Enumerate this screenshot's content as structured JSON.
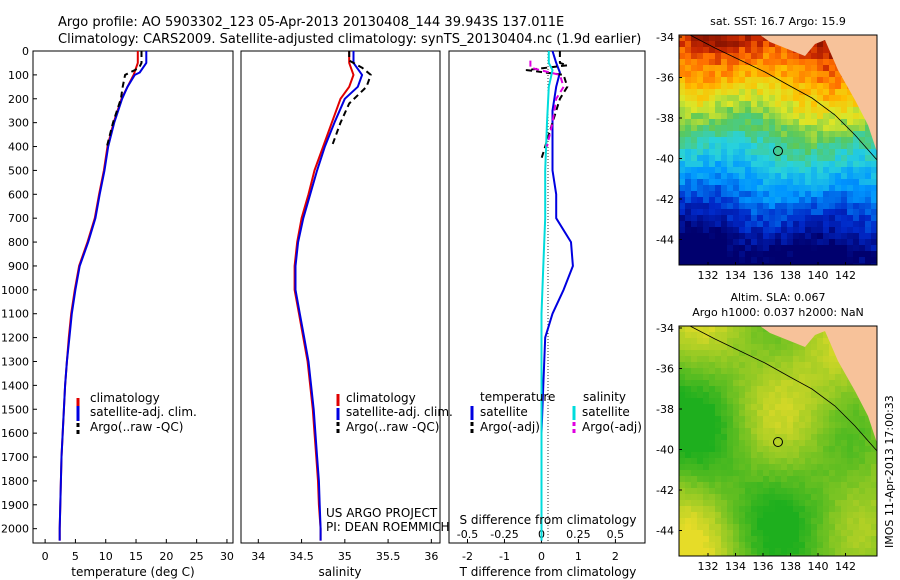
{
  "header": {
    "line1": "Argo profile: AO 5903302_123 05-Apr-2013 20130408_144 39.943S 137.011E",
    "line2": "Climatology: CARS2009. Satellite-adjusted climatology: synTS_20130404.nc (1.9d earlier)"
  },
  "colors": {
    "climatology": "#e00000",
    "satellite": "#0000e0",
    "argo": "#000000",
    "sal_satellite": "#00dcdc",
    "sal_argo": "#e000e0",
    "land": "#f7c29a"
  },
  "chart_data": [
    {
      "id": "temperature",
      "type": "line",
      "xlabel": "temperature (deg C)",
      "xlim": [
        -2,
        31
      ],
      "ylim": [
        0,
        2060
      ],
      "xticks": [
        0,
        5,
        10,
        15,
        20,
        25,
        30
      ],
      "yticks": [
        0,
        100,
        200,
        300,
        400,
        500,
        600,
        700,
        800,
        900,
        1000,
        1100,
        1200,
        1300,
        1400,
        1500,
        1600,
        1700,
        1800,
        1900,
        2000
      ],
      "y_inverted": true,
      "legend": [
        "climatology",
        "satellite-adj. clim.",
        "Argo(..raw -QC)"
      ],
      "series": [
        {
          "name": "climatology",
          "style": "solid",
          "color_key": "climatology",
          "points": [
            [
              15.3,
              0
            ],
            [
              15.3,
              50
            ],
            [
              14.6,
              100
            ],
            [
              13.6,
              150
            ],
            [
              12.6,
              200
            ],
            [
              11.3,
              300
            ],
            [
              10.3,
              400
            ],
            [
              9.7,
              500
            ],
            [
              8.9,
              600
            ],
            [
              8.2,
              700
            ],
            [
              7.0,
              800
            ],
            [
              5.6,
              900
            ],
            [
              4.9,
              1000
            ],
            [
              4.3,
              1100
            ],
            [
              3.9,
              1200
            ],
            [
              3.6,
              1300
            ],
            [
              3.3,
              1400
            ],
            [
              3.1,
              1500
            ],
            [
              2.9,
              1600
            ],
            [
              2.7,
              1700
            ],
            [
              2.6,
              1800
            ],
            [
              2.5,
              1900
            ],
            [
              2.4,
              2000
            ],
            [
              2.4,
              2050
            ]
          ]
        },
        {
          "name": "satellite-adj. clim.",
          "style": "solid",
          "color_key": "satellite",
          "points": [
            [
              16.7,
              0
            ],
            [
              16.7,
              50
            ],
            [
              15.6,
              90
            ],
            [
              14.8,
              100
            ],
            [
              13.6,
              150
            ],
            [
              12.7,
              200
            ],
            [
              11.4,
              300
            ],
            [
              10.4,
              400
            ],
            [
              9.8,
              500
            ],
            [
              9.0,
              600
            ],
            [
              8.3,
              700
            ],
            [
              7.1,
              800
            ],
            [
              5.7,
              900
            ],
            [
              5.0,
              1000
            ],
            [
              4.4,
              1100
            ],
            [
              4.0,
              1200
            ],
            [
              3.6,
              1300
            ],
            [
              3.3,
              1400
            ],
            [
              3.1,
              1500
            ],
            [
              2.9,
              1600
            ],
            [
              2.7,
              1700
            ],
            [
              2.6,
              1800
            ],
            [
              2.5,
              1900
            ],
            [
              2.4,
              2000
            ],
            [
              2.4,
              2050
            ]
          ]
        },
        {
          "name": "Argo(..raw -QC)",
          "style": "dashed",
          "color_key": "argo",
          "points": [
            [
              15.9,
              0
            ],
            [
              15.9,
              50
            ],
            [
              15.5,
              70
            ],
            [
              14.8,
              80
            ],
            [
              13.2,
              100
            ],
            [
              12.8,
              150
            ],
            [
              12.5,
              200
            ],
            [
              11.2,
              300
            ],
            [
              10.2,
              400
            ]
          ]
        }
      ]
    },
    {
      "id": "salinity",
      "type": "line",
      "xlabel": "salinity",
      "xlim": [
        33.8,
        36.1
      ],
      "ylim": [
        0,
        2060
      ],
      "xticks": [
        34,
        34.5,
        35,
        35.5,
        36
      ],
      "y_inverted": true,
      "legend": [
        "climatology",
        "satellite-adj. clim.",
        "Argo(..raw -QC)"
      ],
      "annotation": [
        "US ARGO PROJECT",
        "PI: DEAN ROEMMICH"
      ],
      "series": [
        {
          "name": "climatology",
          "style": "solid",
          "color_key": "climatology",
          "points": [
            [
              35.05,
              0
            ],
            [
              35.05,
              50
            ],
            [
              35.1,
              100
            ],
            [
              35.05,
              150
            ],
            [
              34.95,
              200
            ],
            [
              34.85,
              300
            ],
            [
              34.75,
              400
            ],
            [
              34.65,
              500
            ],
            [
              34.58,
              600
            ],
            [
              34.5,
              700
            ],
            [
              34.45,
              800
            ],
            [
              34.42,
              900
            ],
            [
              34.42,
              1000
            ],
            [
              34.47,
              1100
            ],
            [
              34.52,
              1200
            ],
            [
              34.57,
              1300
            ],
            [
              34.6,
              1400
            ],
            [
              34.63,
              1500
            ],
            [
              34.65,
              1600
            ],
            [
              34.67,
              1700
            ],
            [
              34.69,
              1800
            ],
            [
              34.7,
              1900
            ],
            [
              34.72,
              2000
            ],
            [
              34.72,
              2050
            ]
          ]
        },
        {
          "name": "satellite-adj. clim.",
          "style": "solid",
          "color_key": "satellite",
          "points": [
            [
              35.1,
              0
            ],
            [
              35.1,
              50
            ],
            [
              35.2,
              100
            ],
            [
              35.15,
              150
            ],
            [
              35.0,
              200
            ],
            [
              34.88,
              300
            ],
            [
              34.77,
              400
            ],
            [
              34.68,
              500
            ],
            [
              34.6,
              600
            ],
            [
              34.52,
              700
            ],
            [
              34.46,
              800
            ],
            [
              34.43,
              900
            ],
            [
              34.43,
              1000
            ],
            [
              34.48,
              1100
            ],
            [
              34.53,
              1200
            ],
            [
              34.58,
              1300
            ],
            [
              34.61,
              1400
            ],
            [
              34.64,
              1500
            ],
            [
              34.66,
              1600
            ],
            [
              34.68,
              1700
            ],
            [
              34.7,
              1800
            ],
            [
              34.71,
              1900
            ],
            [
              34.72,
              2000
            ],
            [
              34.72,
              2050
            ]
          ]
        },
        {
          "name": "Argo(..raw -QC)",
          "style": "dashed",
          "color_key": "argo",
          "points": [
            [
              35.05,
              0
            ],
            [
              35.05,
              40
            ],
            [
              35.2,
              70
            ],
            [
              35.3,
              100
            ],
            [
              35.25,
              150
            ],
            [
              35.05,
              220
            ],
            [
              34.95,
              300
            ],
            [
              34.85,
              400
            ]
          ]
        }
      ]
    },
    {
      "id": "difference",
      "type": "line",
      "xlabel": "T difference from climatology",
      "x2label": "S difference from climatology",
      "xlim": [
        -2.5,
        2.8
      ],
      "ylim": [
        0,
        2060
      ],
      "xticks": [
        -2,
        -1,
        0,
        1,
        2
      ],
      "x2ticks": [
        -0.5,
        -0.25,
        0,
        0.25,
        0.5
      ],
      "x2scale": 4,
      "y_inverted": true,
      "legend": {
        "temperature_head": "temperature",
        "salinity_head": "salinity",
        "temperature": [
          "satellite",
          "Argo(-adj)"
        ],
        "salinity": [
          "satellite",
          "Argo(-adj)"
        ]
      },
      "series": [
        {
          "name": "temperature satellite",
          "style": "solid",
          "color_key": "satellite",
          "points": [
            [
              0.3,
              0
            ],
            [
              0.4,
              50
            ],
            [
              0.5,
              90
            ],
            [
              0.4,
              150
            ],
            [
              0.3,
              250
            ],
            [
              0.3,
              400
            ],
            [
              0.3,
              500
            ],
            [
              0.4,
              600
            ],
            [
              0.4,
              700
            ],
            [
              0.8,
              800
            ],
            [
              0.85,
              900
            ],
            [
              0.6,
              1000
            ],
            [
              0.3,
              1100
            ],
            [
              0.1,
              1200
            ],
            [
              0.05,
              1400
            ],
            [
              0.0,
              1600
            ],
            [
              0.0,
              2050
            ]
          ]
        },
        {
          "name": "temperature Argo(-adj)",
          "style": "dashed",
          "color_key": "argo",
          "points": [
            [
              0.5,
              0
            ],
            [
              0.5,
              50
            ],
            [
              0.7,
              60
            ],
            [
              -0.4,
              80
            ],
            [
              0.6,
              100
            ],
            [
              0.7,
              150
            ],
            [
              0.5,
              200
            ],
            [
              0.3,
              300
            ],
            [
              0.1,
              400
            ],
            [
              0.0,
              450
            ]
          ]
        },
        {
          "name": "salinity satellite",
          "style": "solid",
          "color_key": "sal_satellite",
          "points": [
            [
              0.2,
              0
            ],
            [
              0.2,
              50
            ],
            [
              0.3,
              80
            ],
            [
              0.2,
              150
            ],
            [
              0.15,
              300
            ],
            [
              0.1,
              500
            ],
            [
              0.1,
              700
            ],
            [
              0.05,
              900
            ],
            [
              0.0,
              1100
            ],
            [
              0.0,
              2050
            ]
          ]
        },
        {
          "name": "salinity Argo(-adj)",
          "style": "dashed",
          "color_key": "sal_argo",
          "points": [
            [
              -0.3,
              40
            ],
            [
              -0.3,
              70
            ],
            [
              0.5,
              100
            ],
            [
              0.6,
              150
            ],
            [
              0.4,
              200
            ],
            [
              0.3,
              300
            ],
            [
              0.15,
              400
            ]
          ]
        }
      ]
    }
  ],
  "maps": [
    {
      "id": "sst-map",
      "title": "sat. SST: 16.7 Argo: 15.9",
      "title2": "",
      "yticks": [
        "-34",
        "-36",
        "-38",
        "-40",
        "-42",
        "-44"
      ],
      "xticks": [
        "132",
        "134",
        "136",
        "138",
        "140",
        "142"
      ],
      "marker": {
        "lon": 137.0,
        "lat": -40.0
      }
    },
    {
      "id": "sla-map",
      "title": "Altim. SLA: 0.067",
      "title2": "Argo h1000: 0.037 h2000: NaN",
      "yticks": [
        "-34",
        "-36",
        "-38",
        "-40",
        "-42",
        "-44"
      ],
      "xticks": [
        "132",
        "134",
        "136",
        "138",
        "140",
        "142"
      ],
      "marker": {
        "lon": 137.0,
        "lat": -40.0
      }
    }
  ],
  "side_label": "IMOS 11-Apr-2013 17:00:33"
}
